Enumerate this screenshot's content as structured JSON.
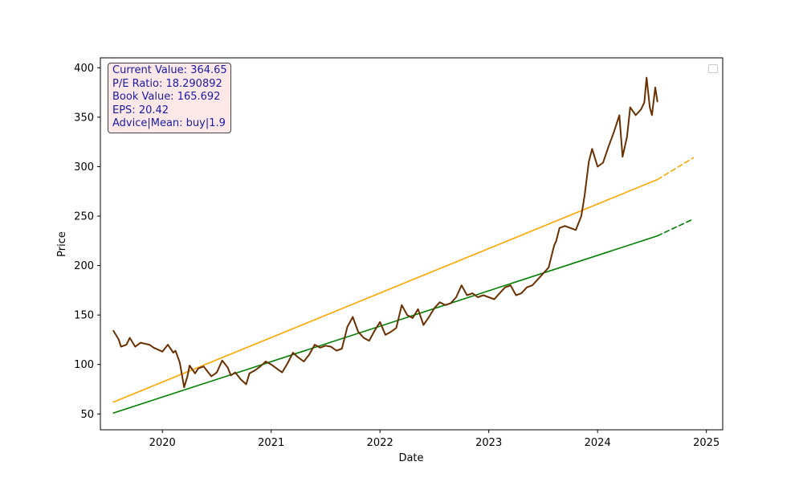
{
  "chart_data": {
    "type": "line",
    "xlabel": "Date",
    "ylabel": "Price",
    "xlim": [
      2019.43,
      2025.15
    ],
    "ylim": [
      34,
      410
    ],
    "x_ticks": [
      2020,
      2021,
      2022,
      2023,
      2024,
      2025
    ],
    "y_ticks": [
      50,
      100,
      150,
      200,
      250,
      300,
      350,
      400
    ],
    "legend": {
      "placement": "top-right",
      "entries": []
    },
    "info_box": {
      "lines": [
        "Current Value: 364.65",
        "P/E Ratio: 18.290892",
        "Book Value: 165.692",
        "EPS: 20.42",
        "Advice|Mean: buy|1.9"
      ]
    },
    "colors": {
      "price": "#6b3000",
      "upper_trend": "#ffa500",
      "lower_trend": "#008000"
    },
    "series": [
      {
        "role": "price",
        "x": [
          2019.55,
          2019.6,
          2019.62,
          2019.67,
          2019.7,
          2019.75,
          2019.8,
          2019.88,
          2019.92,
          2020.0,
          2020.05,
          2020.1,
          2020.12,
          2020.16,
          2020.2,
          2020.23,
          2020.25,
          2020.3,
          2020.33,
          2020.38,
          2020.45,
          2020.5,
          2020.55,
          2020.6,
          2020.63,
          2020.67,
          2020.72,
          2020.77,
          2020.8,
          2020.85,
          2020.9,
          2020.95,
          2021.0,
          2021.05,
          2021.1,
          2021.15,
          2021.2,
          2021.25,
          2021.3,
          2021.35,
          2021.4,
          2021.45,
          2021.5,
          2021.55,
          2021.6,
          2021.65,
          2021.7,
          2021.75,
          2021.8,
          2021.85,
          2021.9,
          2021.95,
          2022.0,
          2022.05,
          2022.1,
          2022.15,
          2022.2,
          2022.25,
          2022.3,
          2022.35,
          2022.4,
          2022.45,
          2022.5,
          2022.55,
          2022.6,
          2022.65,
          2022.7,
          2022.75,
          2022.8,
          2022.85,
          2022.9,
          2022.95,
          2023.0,
          2023.05,
          2023.1,
          2023.15,
          2023.2,
          2023.25,
          2023.3,
          2023.35,
          2023.4,
          2023.45,
          2023.5,
          2023.55,
          2023.6,
          2023.62,
          2023.65,
          2023.7,
          2023.75,
          2023.8,
          2023.85,
          2023.88,
          2023.92,
          2023.95,
          2024.0,
          2024.05,
          2024.1,
          2024.15,
          2024.2,
          2024.23,
          2024.27,
          2024.3,
          2024.35,
          2024.4,
          2024.43,
          2024.45,
          2024.48,
          2024.5,
          2024.53,
          2024.55
        ],
        "y": [
          134,
          125,
          118,
          120,
          127,
          118,
          122,
          120,
          117,
          113,
          120,
          112,
          114,
          102,
          77,
          88,
          99,
          91,
          96,
          98,
          88,
          92,
          104,
          97,
          89,
          92,
          85,
          80,
          91,
          94,
          98,
          103,
          100,
          96,
          92,
          101,
          112,
          107,
          103,
          110,
          120,
          117,
          119,
          118,
          114,
          116,
          138,
          148,
          133,
          127,
          124,
          134,
          143,
          130,
          133,
          137,
          160,
          150,
          147,
          156,
          140,
          148,
          157,
          163,
          160,
          162,
          168,
          180,
          170,
          172,
          168,
          170,
          168,
          166,
          172,
          178,
          180,
          170,
          172,
          178,
          180,
          186,
          192,
          198,
          220,
          225,
          238,
          240,
          238,
          236,
          250,
          270,
          305,
          318,
          300,
          304,
          320,
          335,
          352,
          310,
          330,
          360,
          352,
          358,
          365,
          390,
          360,
          352,
          380,
          366
        ]
      },
      {
        "role": "upper_trend",
        "x": [
          2019.55,
          2024.55
        ],
        "y": [
          62,
          287
        ]
      },
      {
        "role": "upper_trend_projection",
        "x": [
          2024.55,
          2024.88
        ],
        "y": [
          287,
          309
        ]
      },
      {
        "role": "lower_trend",
        "x": [
          2019.55,
          2024.55
        ],
        "y": [
          51,
          230
        ]
      },
      {
        "role": "lower_trend_projection",
        "x": [
          2024.55,
          2024.88
        ],
        "y": [
          230,
          247
        ]
      }
    ]
  }
}
